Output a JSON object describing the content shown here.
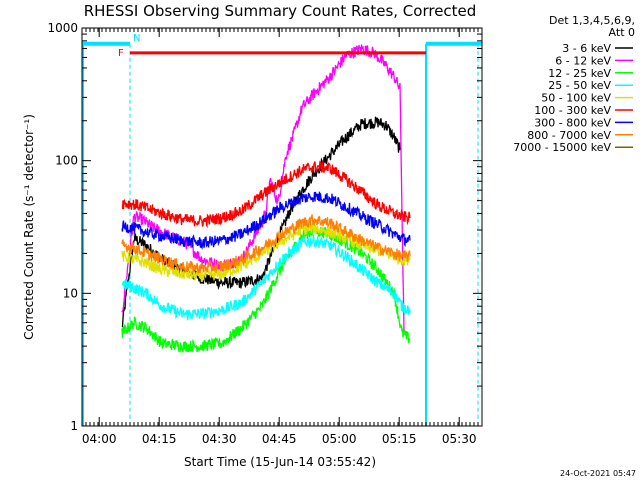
{
  "chart_data": {
    "type": "line",
    "title": "RHESSI Observing Summary Count Rates, Corrected",
    "xlabel": "Start Time (15-Jun-14 03:55:42)",
    "ylabel": "Corrected Count Rate (s⁻¹ detector⁻¹)",
    "x_ticks": [
      "04:00",
      "04:15",
      "04:30",
      "04:45",
      "05:00",
      "05:15",
      "05:30"
    ],
    "x_tick_minutes": [
      4.3,
      19.3,
      34.3,
      49.3,
      64.3,
      79.3,
      94.3
    ],
    "xlim_minutes": [
      0,
      100
    ],
    "yscale": "log",
    "ylim": [
      1,
      1000
    ],
    "y_ticks": [
      "1",
      "10",
      "100",
      "1000"
    ],
    "y_tick_values": [
      1,
      10,
      100,
      1000
    ],
    "legend_header": [
      "Det 1,3,4,5,6,9,",
      "Att 0"
    ],
    "legend_position": "right",
    "series": [
      {
        "name": "3 - 6 keV",
        "color": "#000000",
        "x": [
          10,
          13,
          16,
          20,
          25,
          30,
          35,
          40,
          45,
          48,
          50,
          52,
          55,
          58,
          62,
          66,
          70,
          74,
          76,
          78,
          79.5
        ],
        "y": [
          5.5,
          26,
          23,
          18,
          15,
          13,
          12,
          12,
          13,
          22,
          30,
          42,
          60,
          80,
          110,
          150,
          190,
          195,
          185,
          150,
          120
        ]
      },
      {
        "name": "6 - 12 keV",
        "color": "#ff00ff",
        "x": [
          10,
          13,
          15,
          18,
          22,
          26,
          30,
          35,
          40,
          44,
          46,
          47,
          49,
          51,
          53,
          55,
          58,
          62,
          66,
          70,
          73,
          76,
          78,
          79.5,
          80.5
        ],
        "y": [
          7,
          38,
          36,
          31,
          27,
          24,
          18,
          16,
          18,
          30,
          40,
          72,
          48,
          110,
          160,
          250,
          320,
          430,
          620,
          700,
          650,
          520,
          430,
          350,
          5
        ]
      },
      {
        "name": "12 - 25 keV",
        "color": "#00ff00",
        "x": [
          10,
          13,
          16,
          20,
          25,
          30,
          35,
          40,
          45,
          50,
          55,
          58,
          62,
          66,
          70,
          74,
          78,
          80,
          82
        ],
        "y": [
          5,
          6,
          5.5,
          4.2,
          4.0,
          4.0,
          4.2,
          5.5,
          8,
          16,
          27,
          30,
          28,
          24,
          20,
          15,
          10,
          5,
          4.5
        ]
      },
      {
        "name": "25 - 50 keV",
        "color": "#00ffff",
        "x": [
          10,
          13,
          16,
          20,
          25,
          30,
          35,
          40,
          45,
          50,
          55,
          58,
          62,
          66,
          70,
          74,
          78,
          80,
          82
        ],
        "y": [
          12,
          11,
          10,
          8,
          7,
          7,
          7.5,
          8.5,
          12,
          18,
          24,
          25,
          23,
          19,
          15,
          12,
          10,
          8,
          7.5
        ]
      },
      {
        "name": "50 - 100 keV",
        "color": "#e0e000",
        "x": [
          10,
          13,
          16,
          20,
          25,
          30,
          35,
          40,
          45,
          50,
          55,
          58,
          62,
          66,
          70,
          74,
          78,
          80,
          82
        ],
        "y": [
          19,
          18,
          17,
          15,
          14,
          13.5,
          14,
          16,
          20,
          25,
          30,
          31,
          29,
          26,
          23,
          21,
          19,
          18,
          18
        ]
      },
      {
        "name": "100 - 300 keV",
        "color": "#ff0000",
        "x": [
          10,
          13,
          16,
          20,
          25,
          30,
          35,
          40,
          45,
          50,
          55,
          58,
          62,
          66,
          70,
          74,
          78,
          80,
          82
        ],
        "y": [
          48,
          47,
          44,
          40,
          36,
          35,
          37,
          42,
          55,
          70,
          85,
          90,
          88,
          72,
          58,
          46,
          40,
          38,
          37
        ]
      },
      {
        "name": "300 - 800 keV",
        "color": "#0000ff",
        "x": [
          10,
          13,
          16,
          20,
          25,
          30,
          35,
          40,
          45,
          50,
          55,
          58,
          62,
          66,
          70,
          74,
          78,
          80,
          82
        ],
        "y": [
          32,
          31,
          29,
          27,
          25,
          24,
          25,
          28,
          35,
          45,
          52,
          54,
          52,
          45,
          38,
          33,
          28,
          26,
          25
        ]
      },
      {
        "name": "800 - 7000 keV",
        "color": "#ff8000",
        "x": [
          10,
          13,
          16,
          20,
          25,
          30,
          35,
          40,
          45,
          50,
          55,
          58,
          62,
          66,
          70,
          74,
          78,
          80,
          82
        ],
        "y": [
          23,
          22,
          20,
          18,
          16,
          15.5,
          16,
          18,
          22,
          28,
          34,
          36,
          34,
          29,
          25,
          22,
          20,
          19,
          19
        ]
      },
      {
        "name": "7000 - 15000 keV",
        "color": "#806000",
        "x": [],
        "y": []
      }
    ],
    "annotations": {
      "flare_flag": {
        "label": "F",
        "color": "#ff0000",
        "start_minutes": 12,
        "end_minutes": 86,
        "value": 650
      },
      "night_flag": {
        "label": "N",
        "color": "#00e0ff",
        "segments": [
          [
            0,
            12
          ],
          [
            86,
            100
          ]
        ],
        "value": 760
      },
      "night_boundaries_minutes": [
        12,
        86,
        100
      ]
    }
  },
  "footer": {
    "timestamp": "24-Oct-2021 05:47"
  }
}
